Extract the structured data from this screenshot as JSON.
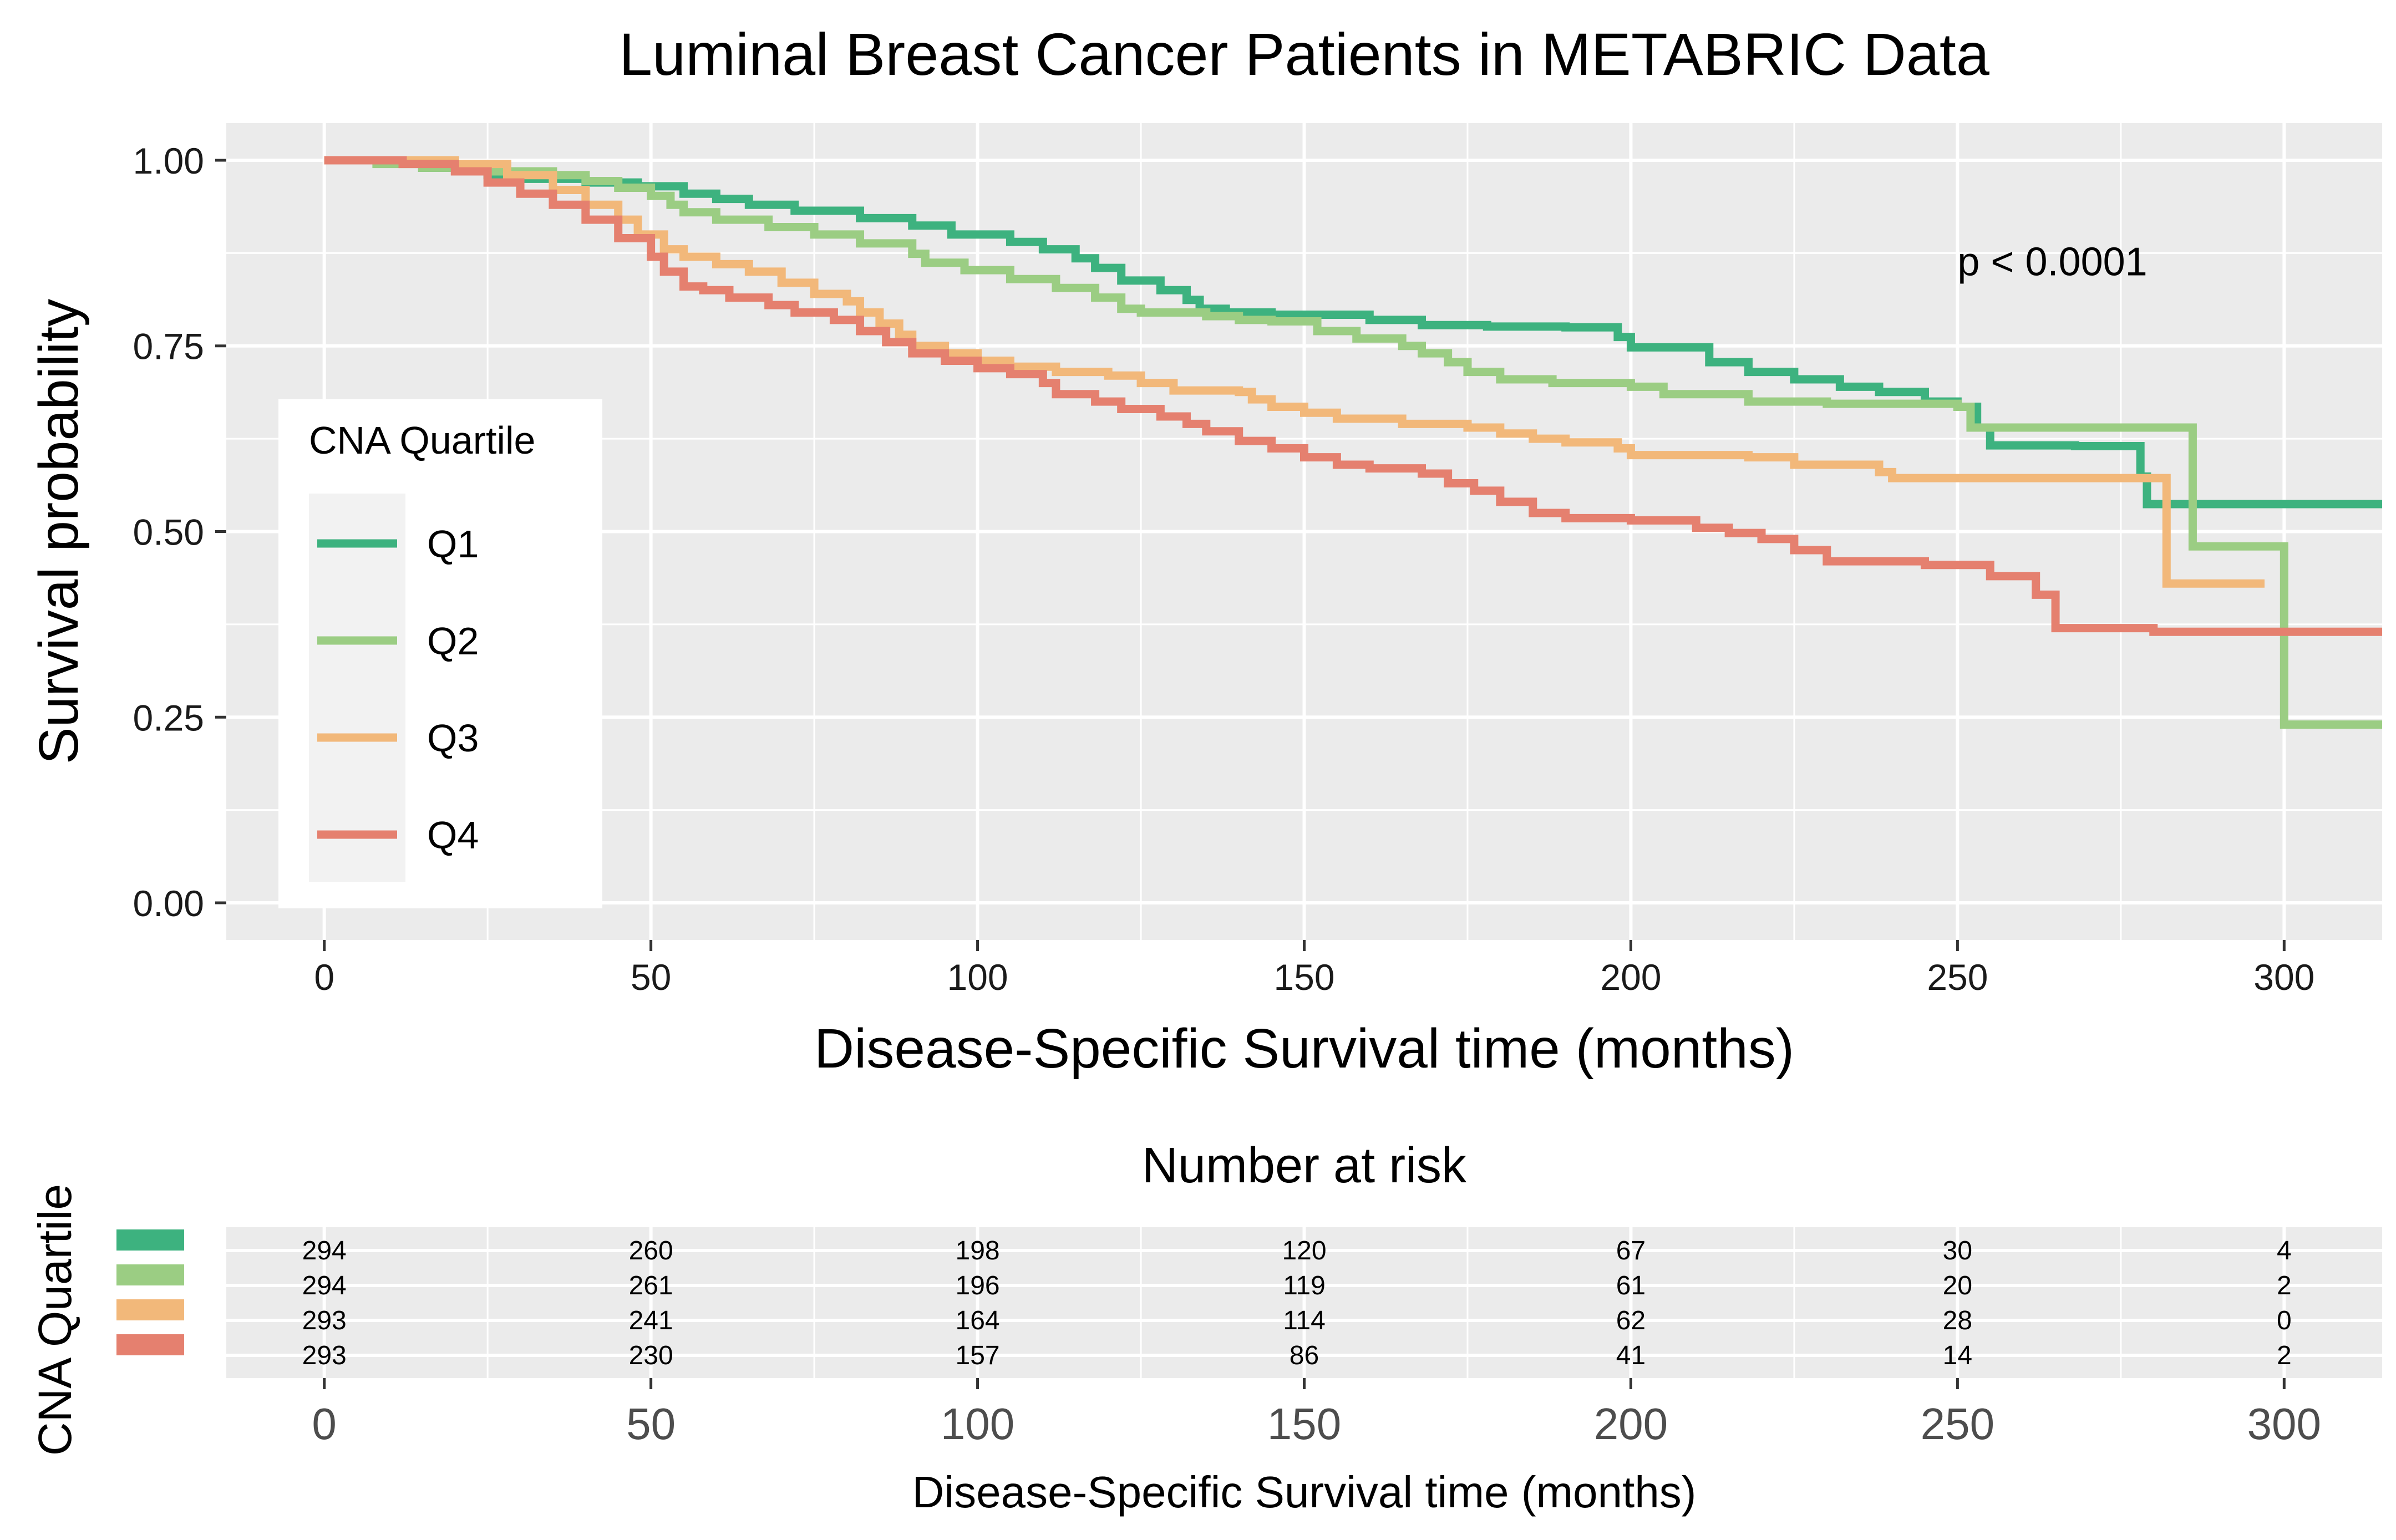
{
  "chart_data": [
    {
      "type": "line",
      "chart_kind": "kaplan-meier survival curve",
      "title": "Luminal Breast Cancer Patients in METABRIC Data",
      "xlabel": "Disease-Specific Survival time (months)",
      "ylabel": "Survival probability",
      "xlim": [
        -15,
        315
      ],
      "ylim": [
        -0.05,
        1.05
      ],
      "x_ticks": [
        0,
        50,
        100,
        150,
        200,
        250,
        300
      ],
      "x_minor_ticks": [
        25,
        75,
        125,
        175,
        225,
        275
      ],
      "y_ticks": [
        0.0,
        0.25,
        0.5,
        0.75,
        1.0
      ],
      "y_tick_labels": [
        "0.00",
        "0.25",
        "0.50",
        "0.75",
        "1.00"
      ],
      "y_minor_ticks": [
        0.125,
        0.375,
        0.625,
        0.875
      ],
      "grid": true,
      "legend": {
        "title": "CNA Quartile",
        "placement": "inside-left",
        "entries": [
          "Q1",
          "Q2",
          "Q3",
          "Q4"
        ]
      },
      "annotation": {
        "text": "p < 0.0001",
        "x": 250,
        "y": 0.845
      },
      "series": [
        {
          "name": "Q1",
          "color": "#3DB27F",
          "steps": [
            [
              0,
              1.0
            ],
            [
              15,
              0.99
            ],
            [
              25,
              0.98
            ],
            [
              30,
              0.975
            ],
            [
              40,
              0.97
            ],
            [
              48,
              0.965
            ],
            [
              55,
              0.955
            ],
            [
              60,
              0.948
            ],
            [
              65,
              0.94
            ],
            [
              72,
              0.932
            ],
            [
              82,
              0.922
            ],
            [
              90,
              0.912
            ],
            [
              96,
              0.9
            ],
            [
              105,
              0.89
            ],
            [
              110,
              0.88
            ],
            [
              115,
              0.868
            ],
            [
              118,
              0.855
            ],
            [
              122,
              0.838
            ],
            [
              128,
              0.825
            ],
            [
              132,
              0.812
            ],
            [
              134,
              0.8
            ],
            [
              138,
              0.795
            ],
            [
              145,
              0.792
            ],
            [
              160,
              0.785
            ],
            [
              168,
              0.778
            ],
            [
              178,
              0.776
            ],
            [
              190,
              0.775
            ],
            [
              198,
              0.762
            ],
            [
              200,
              0.748
            ],
            [
              212,
              0.74
            ],
            [
              212,
              0.728
            ],
            [
              218,
              0.715
            ],
            [
              225,
              0.705
            ],
            [
              232,
              0.695
            ],
            [
              238,
              0.688
            ],
            [
              245,
              0.675
            ],
            [
              250,
              0.668
            ],
            [
              253,
              0.64
            ],
            [
              255,
              0.616
            ],
            [
              268,
              0.615
            ],
            [
              278,
              0.574
            ],
            [
              279,
              0.537
            ],
            [
              315,
              0.537
            ]
          ]
        },
        {
          "name": "Q2",
          "color": "#9BCD83",
          "steps": [
            [
              0,
              1.0
            ],
            [
              8,
              0.995
            ],
            [
              15,
              0.99
            ],
            [
              25,
              0.985
            ],
            [
              35,
              0.98
            ],
            [
              40,
              0.972
            ],
            [
              45,
              0.963
            ],
            [
              50,
              0.952
            ],
            [
              53,
              0.94
            ],
            [
              55,
              0.93
            ],
            [
              60,
              0.92
            ],
            [
              68,
              0.91
            ],
            [
              75,
              0.9
            ],
            [
              82,
              0.888
            ],
            [
              90,
              0.874
            ],
            [
              92,
              0.862
            ],
            [
              98,
              0.852
            ],
            [
              105,
              0.84
            ],
            [
              112,
              0.828
            ],
            [
              118,
              0.815
            ],
            [
              122,
              0.8
            ],
            [
              125,
              0.795
            ],
            [
              135,
              0.79
            ],
            [
              140,
              0.785
            ],
            [
              145,
              0.783
            ],
            [
              152,
              0.77
            ],
            [
              158,
              0.76
            ],
            [
              165,
              0.75
            ],
            [
              168,
              0.74
            ],
            [
              172,
              0.728
            ],
            [
              175,
              0.715
            ],
            [
              180,
              0.705
            ],
            [
              188,
              0.7
            ],
            [
              200,
              0.695
            ],
            [
              205,
              0.685
            ],
            [
              218,
              0.675
            ],
            [
              230,
              0.672
            ],
            [
              250,
              0.668
            ],
            [
              252,
              0.64
            ],
            [
              286,
              0.48
            ],
            [
              300,
              0.24
            ],
            [
              315,
              0.24
            ]
          ]
        },
        {
          "name": "Q3",
          "color": "#F2B87A",
          "steps": [
            [
              0,
              1.0
            ],
            [
              20,
              0.995
            ],
            [
              28,
              0.98
            ],
            [
              35,
              0.96
            ],
            [
              40,
              0.94
            ],
            [
              45,
              0.92
            ],
            [
              48,
              0.9
            ],
            [
              52,
              0.88
            ],
            [
              55,
              0.87
            ],
            [
              60,
              0.86
            ],
            [
              65,
              0.85
            ],
            [
              70,
              0.835
            ],
            [
              75,
              0.82
            ],
            [
              80,
              0.81
            ],
            [
              82,
              0.795
            ],
            [
              85,
              0.78
            ],
            [
              88,
              0.765
            ],
            [
              90,
              0.75
            ],
            [
              95,
              0.74
            ],
            [
              100,
              0.73
            ],
            [
              105,
              0.722
            ],
            [
              112,
              0.715
            ],
            [
              120,
              0.71
            ],
            [
              125,
              0.7
            ],
            [
              130,
              0.69
            ],
            [
              140,
              0.688
            ],
            [
              142,
              0.678
            ],
            [
              145,
              0.668
            ],
            [
              150,
              0.66
            ],
            [
              155,
              0.652
            ],
            [
              165,
              0.645
            ],
            [
              175,
              0.64
            ],
            [
              180,
              0.632
            ],
            [
              185,
              0.625
            ],
            [
              190,
              0.62
            ],
            [
              198,
              0.612
            ],
            [
              200,
              0.603
            ],
            [
              218,
              0.6
            ],
            [
              225,
              0.59
            ],
            [
              238,
              0.58
            ],
            [
              240,
              0.572
            ],
            [
              282,
              0.572
            ],
            [
              282,
              0.43
            ],
            [
              297,
              0.43
            ]
          ]
        },
        {
          "name": "Q4",
          "color": "#E5806F",
          "steps": [
            [
              0,
              1.0
            ],
            [
              12,
              0.995
            ],
            [
              20,
              0.985
            ],
            [
              25,
              0.97
            ],
            [
              30,
              0.955
            ],
            [
              35,
              0.94
            ],
            [
              40,
              0.92
            ],
            [
              45,
              0.895
            ],
            [
              50,
              0.87
            ],
            [
              52,
              0.85
            ],
            [
              55,
              0.83
            ],
            [
              58,
              0.825
            ],
            [
              62,
              0.815
            ],
            [
              68,
              0.805
            ],
            [
              72,
              0.795
            ],
            [
              78,
              0.785
            ],
            [
              82,
              0.77
            ],
            [
              86,
              0.755
            ],
            [
              90,
              0.74
            ],
            [
              95,
              0.73
            ],
            [
              100,
              0.72
            ],
            [
              105,
              0.712
            ],
            [
              110,
              0.7
            ],
            [
              112,
              0.685
            ],
            [
              118,
              0.675
            ],
            [
              122,
              0.665
            ],
            [
              128,
              0.655
            ],
            [
              132,
              0.645
            ],
            [
              135,
              0.635
            ],
            [
              140,
              0.622
            ],
            [
              145,
              0.612
            ],
            [
              150,
              0.6
            ],
            [
              155,
              0.59
            ],
            [
              160,
              0.585
            ],
            [
              168,
              0.578
            ],
            [
              172,
              0.565
            ],
            [
              176,
              0.555
            ],
            [
              180,
              0.54
            ],
            [
              185,
              0.525
            ],
            [
              190,
              0.518
            ],
            [
              200,
              0.515
            ],
            [
              210,
              0.505
            ],
            [
              215,
              0.498
            ],
            [
              220,
              0.49
            ],
            [
              225,
              0.475
            ],
            [
              230,
              0.46
            ],
            [
              245,
              0.455
            ],
            [
              255,
              0.44
            ],
            [
              262,
              0.415
            ],
            [
              265,
              0.37
            ],
            [
              280,
              0.365
            ],
            [
              315,
              0.365
            ]
          ]
        }
      ]
    },
    {
      "type": "table",
      "title": "Number at risk",
      "xlabel": "Disease-Specific Survival time (months)",
      "ylabel": "CNA Quartile",
      "xlim": [
        -15,
        315
      ],
      "x_ticks": [
        0,
        50,
        100,
        150,
        200,
        250,
        300
      ],
      "x_minor_ticks": [
        25,
        75,
        125,
        175,
        225,
        275
      ],
      "rows": [
        {
          "name": "Q1",
          "color": "#3DB27F",
          "values": [
            294,
            260,
            198,
            120,
            67,
            30,
            4
          ]
        },
        {
          "name": "Q2",
          "color": "#9BCD83",
          "values": [
            294,
            261,
            196,
            119,
            61,
            20,
            2
          ]
        },
        {
          "name": "Q3",
          "color": "#F2B87A",
          "values": [
            293,
            241,
            164,
            114,
            62,
            28,
            0
          ]
        },
        {
          "name": "Q4",
          "color": "#E5806F",
          "values": [
            293,
            230,
            157,
            86,
            41,
            14,
            2
          ]
        }
      ]
    }
  ]
}
